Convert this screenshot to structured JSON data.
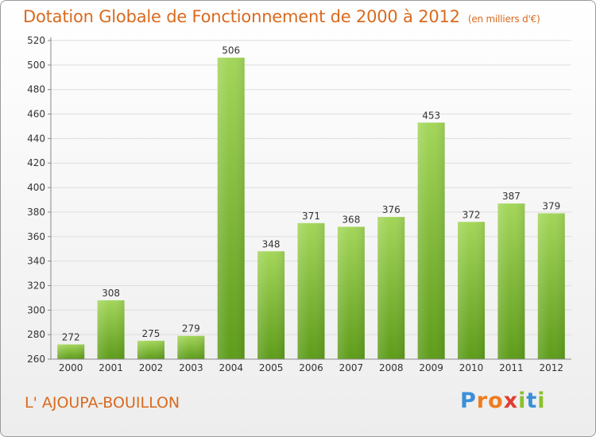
{
  "title": "Dotation Globale de Fonctionnement de 2000 à 2012",
  "units": "(en milliers d'€)",
  "commune": "L' AJOUPA-BOUILLON",
  "logo": "Proxiti",
  "colors": {
    "bar_top": "#a3d65a",
    "bar_bottom": "#5e9c1a",
    "title": "#d96a1e",
    "grid": "#dddddd",
    "axis": "#888888"
  },
  "chart_data": {
    "type": "bar",
    "title": "Dotation Globale de Fonctionnement de 2000 à 2012",
    "categories": [
      "2000",
      "2001",
      "2002",
      "2003",
      "2004",
      "2005",
      "2006",
      "2007",
      "2008",
      "2009",
      "2010",
      "2011",
      "2012"
    ],
    "values": [
      272,
      308,
      275,
      279,
      506,
      348,
      371,
      368,
      376,
      453,
      372,
      387,
      379
    ],
    "ylim": [
      260,
      520
    ],
    "yticks": [
      260,
      280,
      300,
      320,
      340,
      360,
      380,
      400,
      420,
      440,
      460,
      480,
      500,
      520
    ],
    "grid": true,
    "xlabel": "",
    "ylabel": ""
  }
}
